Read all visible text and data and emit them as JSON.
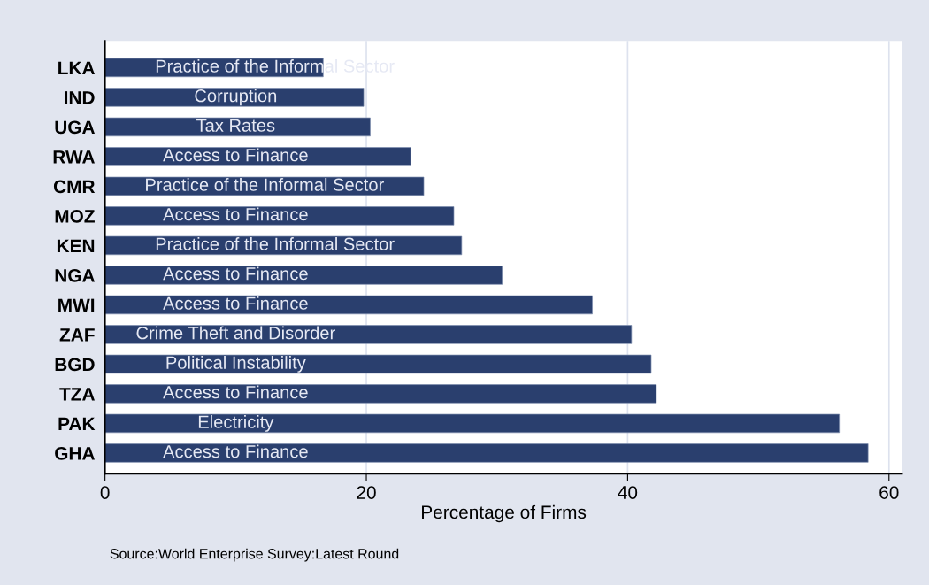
{
  "chart_data": {
    "type": "bar",
    "orientation": "horizontal",
    "categories": [
      "LKA",
      "IND",
      "UGA",
      "RWA",
      "CMR",
      "MOZ",
      "KEN",
      "NGA",
      "MWI",
      "ZAF",
      "BGD",
      "TZA",
      "PAK",
      "GHA"
    ],
    "values": [
      16.7,
      19.8,
      20.3,
      23.4,
      24.4,
      26.7,
      27.3,
      30.4,
      37.3,
      40.3,
      41.8,
      42.2,
      56.2,
      58.4
    ],
    "color": "#2a3f6e",
    "xlabel": "Percentage of Firms",
    "xlim": [
      0,
      61
    ],
    "xticks": [
      0,
      20,
      40,
      60
    ],
    "grid": "x",
    "annotations": [
      {
        "text": "Practice of the Informal Sector",
        "x": 13,
        "y": "LKA"
      },
      {
        "text": "Corruption",
        "x": 10,
        "y": "IND"
      },
      {
        "text": "Tax Rates",
        "x": 10,
        "y": "UGA"
      },
      {
        "text": "Access to Finance",
        "x": 10,
        "y": "RWA"
      },
      {
        "text": "Practice of the Informal Sector",
        "x": 12.2,
        "y": "CMR"
      },
      {
        "text": "Access to Finance",
        "x": 10,
        "y": "MOZ"
      },
      {
        "text": "Practice of the Informal Sector",
        "x": 13,
        "y": "KEN"
      },
      {
        "text": "Access to Finance",
        "x": 10,
        "y": "NGA"
      },
      {
        "text": "Access to Finance",
        "x": 10,
        "y": "MWI"
      },
      {
        "text": "Crime Theft and Disorder",
        "x": 10,
        "y": "ZAF"
      },
      {
        "text": "Political Instability",
        "x": 10,
        "y": "BGD"
      },
      {
        "text": "Access to Finance",
        "x": 10,
        "y": "TZA"
      },
      {
        "text": "Electricity",
        "x": 10,
        "y": "PAK"
      },
      {
        "text": "Access to Finance",
        "x": 10,
        "y": "GHA"
      },
      "Source:World Enterprise Survey:Latest Round"
    ]
  }
}
